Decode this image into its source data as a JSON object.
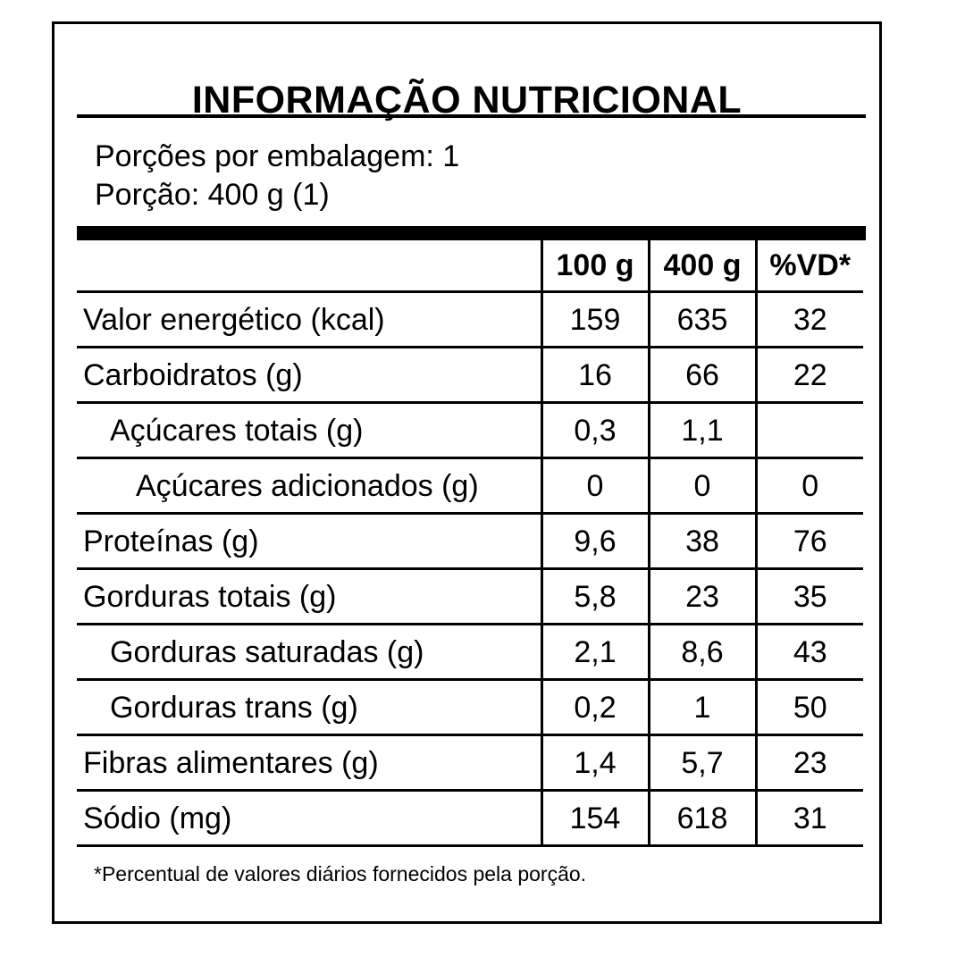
{
  "label": {
    "title": "INFORMAÇÃO NUTRICIONAL",
    "servings_per_package": "Porções por embalagem: 1",
    "serving_size": "Porção: 400 g (1)",
    "columns": [
      "100 g",
      "400 g",
      "%VD*"
    ],
    "rows": [
      {
        "name": "Valor energético (kcal)",
        "per100": "159",
        "per_portion": "635",
        "vd": "32",
        "indent": 0
      },
      {
        "name": "Carboidratos (g)",
        "per100": "16",
        "per_portion": "66",
        "vd": "22",
        "indent": 0
      },
      {
        "name": "Açúcares totais (g)",
        "per100": "0,3",
        "per_portion": "1,1",
        "vd": "",
        "indent": 1
      },
      {
        "name": "Açúcares adicionados (g)",
        "per100": "0",
        "per_portion": "0",
        "vd": "0",
        "indent": 2
      },
      {
        "name": "Proteínas (g)",
        "per100": "9,6",
        "per_portion": "38",
        "vd": "76",
        "indent": 0
      },
      {
        "name": "Gorduras totais (g)",
        "per100": "5,8",
        "per_portion": "23",
        "vd": "35",
        "indent": 0
      },
      {
        "name": "Gorduras saturadas (g)",
        "per100": "2,1",
        "per_portion": "8,6",
        "vd": "43",
        "indent": 1
      },
      {
        "name": "Gorduras trans (g)",
        "per100": "0,2",
        "per_portion": "1",
        "vd": "50",
        "indent": 1
      },
      {
        "name": "Fibras alimentares (g)",
        "per100": "1,4",
        "per_portion": "5,7",
        "vd": "23",
        "indent": 0
      },
      {
        "name": "Sódio (mg)",
        "per100": "154",
        "per_portion": "618",
        "vd": "31",
        "indent": 0
      }
    ],
    "footnote": "*Percentual de valores diários fornecidos pela porção."
  }
}
